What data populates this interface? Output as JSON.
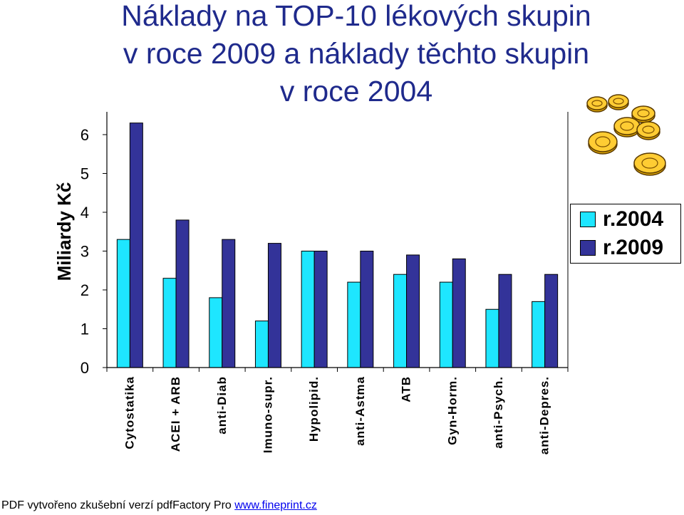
{
  "colors": {
    "series_2004": "#1ee6ff",
    "series_2009": "#333399",
    "title": "#1f2a8c"
  },
  "footer": {
    "text": "PDF vytvořeno zkušební verzí pdfFactory Pro ",
    "link": "www.fineprint.cz"
  },
  "chart_data": {
    "type": "bar",
    "title_lines": [
      "Náklady na TOP-10 lékových skupin",
      "v roce 2009 a náklady těchto skupin",
      "v roce 2004"
    ],
    "ylabel": "Miliardy Kč",
    "xlabel": "",
    "ylim": [
      0,
      6
    ],
    "yticks": [
      "0",
      "1",
      "2",
      "3",
      "4",
      "5",
      "6"
    ],
    "grid": false,
    "legend_position": "right",
    "categories": [
      "Cytostatika",
      "ACEI + ARB",
      "anti-Diab",
      "Imuno-supr.",
      "Hypolipid.",
      "anti-Astma",
      "ATB",
      "Gyn-Horm.",
      "anti-Psych.",
      "anti-Depres."
    ],
    "series": [
      {
        "name": "r.2004",
        "values": [
          3.3,
          2.3,
          1.8,
          1.2,
          3.0,
          2.2,
          2.4,
          2.2,
          1.5,
          1.7
        ]
      },
      {
        "name": "r.2009",
        "values": [
          6.3,
          3.8,
          3.3,
          3.2,
          3.0,
          3.0,
          2.9,
          2.8,
          2.4,
          2.4
        ]
      }
    ]
  }
}
